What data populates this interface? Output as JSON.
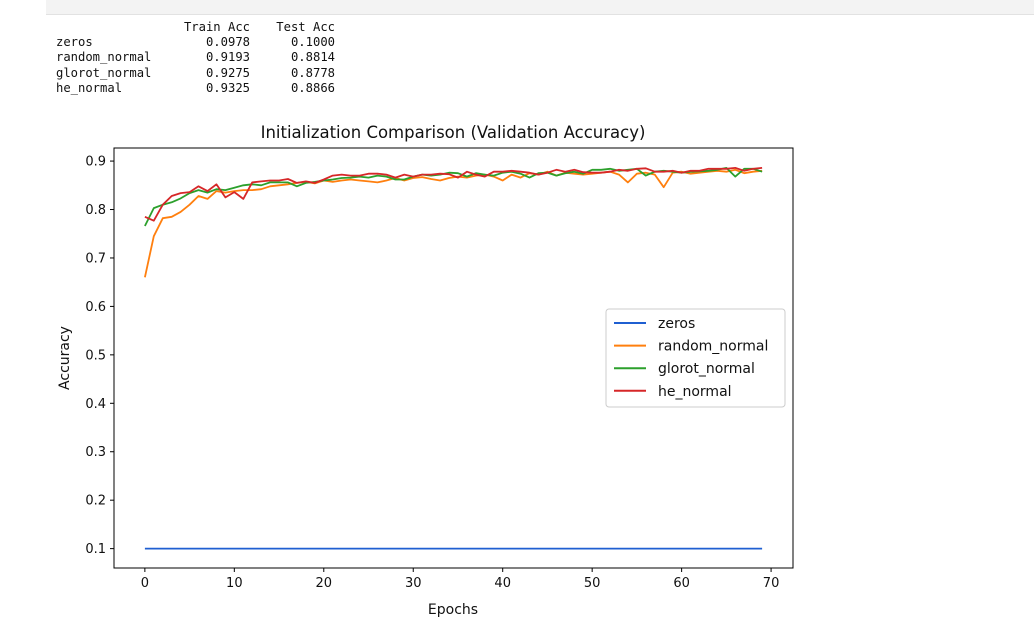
{
  "output_table": {
    "headers": [
      "",
      "Train Acc",
      "Test Acc"
    ],
    "rows": [
      {
        "name": "zeros",
        "train": "0.0978",
        "test": "0.1000"
      },
      {
        "name": "random_normal",
        "train": "0.9193",
        "test": "0.8814"
      },
      {
        "name": "glorot_normal",
        "train": "0.9275",
        "test": "0.8778"
      },
      {
        "name": "he_normal",
        "train": "0.9325",
        "test": "0.8866"
      }
    ]
  },
  "chart_data": {
    "type": "line",
    "title": "Initialization Comparison (Validation Accuracy)",
    "xlabel": "Epochs",
    "ylabel": "Accuracy",
    "xlim": [
      -3.45,
      72.45
    ],
    "ylim": [
      0.06,
      0.927
    ],
    "xticks": [
      0,
      10,
      20,
      30,
      40,
      50,
      60,
      70
    ],
    "yticks": [
      0.1,
      0.2,
      0.3,
      0.4,
      0.5,
      0.6,
      0.7,
      0.8,
      0.9
    ],
    "grid": false,
    "legend_position": "center-right",
    "x": [
      0,
      1,
      2,
      3,
      4,
      5,
      6,
      7,
      8,
      9,
      10,
      11,
      12,
      13,
      14,
      15,
      16,
      17,
      18,
      19,
      20,
      21,
      22,
      23,
      24,
      25,
      26,
      27,
      28,
      29,
      30,
      31,
      32,
      33,
      34,
      35,
      36,
      37,
      38,
      39,
      40,
      41,
      42,
      43,
      44,
      45,
      46,
      47,
      48,
      49,
      50,
      51,
      52,
      53,
      54,
      55,
      56,
      57,
      58,
      59,
      60,
      61,
      62,
      63,
      64,
      65,
      66,
      67,
      68,
      69
    ],
    "series": [
      {
        "name": "zeros",
        "color": "#1f5fd1",
        "values": [
          0.1,
          0.1,
          0.1,
          0.1,
          0.1,
          0.1,
          0.1,
          0.1,
          0.1,
          0.1,
          0.1,
          0.1,
          0.1,
          0.1,
          0.1,
          0.1,
          0.1,
          0.1,
          0.1,
          0.1,
          0.1,
          0.1,
          0.1,
          0.1,
          0.1,
          0.1,
          0.1,
          0.1,
          0.1,
          0.1,
          0.1,
          0.1,
          0.1,
          0.1,
          0.1,
          0.1,
          0.1,
          0.1,
          0.1,
          0.1,
          0.1,
          0.1,
          0.1,
          0.1,
          0.1,
          0.1,
          0.1,
          0.1,
          0.1,
          0.1,
          0.1,
          0.1,
          0.1,
          0.1,
          0.1,
          0.1,
          0.1,
          0.1,
          0.1,
          0.1,
          0.1,
          0.1,
          0.1,
          0.1,
          0.1,
          0.1,
          0.1,
          0.1,
          0.1,
          0.1
        ]
      },
      {
        "name": "random_normal",
        "color": "#ff7f0e",
        "values": [
          0.66,
          0.745,
          0.782,
          0.785,
          0.795,
          0.81,
          0.828,
          0.822,
          0.838,
          0.835,
          0.838,
          0.84,
          0.84,
          0.842,
          0.848,
          0.85,
          0.852,
          0.855,
          0.857,
          0.854,
          0.86,
          0.857,
          0.86,
          0.862,
          0.86,
          0.858,
          0.856,
          0.86,
          0.865,
          0.86,
          0.865,
          0.867,
          0.863,
          0.86,
          0.865,
          0.868,
          0.866,
          0.87,
          0.872,
          0.868,
          0.86,
          0.872,
          0.866,
          0.875,
          0.872,
          0.878,
          0.87,
          0.876,
          0.874,
          0.872,
          0.874,
          0.876,
          0.878,
          0.872,
          0.856,
          0.874,
          0.876,
          0.872,
          0.846,
          0.876,
          0.878,
          0.874,
          0.876,
          0.878,
          0.88,
          0.878,
          0.882,
          0.875,
          0.878,
          0.88
        ]
      },
      {
        "name": "glorot_normal",
        "color": "#2ca02c",
        "values": [
          0.766,
          0.803,
          0.81,
          0.815,
          0.823,
          0.834,
          0.84,
          0.835,
          0.842,
          0.84,
          0.845,
          0.85,
          0.852,
          0.85,
          0.856,
          0.856,
          0.856,
          0.848,
          0.855,
          0.857,
          0.86,
          0.862,
          0.865,
          0.866,
          0.868,
          0.866,
          0.87,
          0.868,
          0.862,
          0.862,
          0.868,
          0.872,
          0.87,
          0.872,
          0.876,
          0.875,
          0.868,
          0.875,
          0.872,
          0.87,
          0.876,
          0.878,
          0.874,
          0.866,
          0.875,
          0.876,
          0.87,
          0.875,
          0.878,
          0.874,
          0.882,
          0.882,
          0.884,
          0.88,
          0.882,
          0.884,
          0.87,
          0.878,
          0.88,
          0.878,
          0.876,
          0.878,
          0.879,
          0.88,
          0.882,
          0.886,
          0.868,
          0.884,
          0.884,
          0.878
        ]
      },
      {
        "name": "he_normal",
        "color": "#d62728",
        "values": [
          0.785,
          0.777,
          0.81,
          0.828,
          0.834,
          0.836,
          0.848,
          0.838,
          0.852,
          0.825,
          0.836,
          0.822,
          0.856,
          0.858,
          0.86,
          0.86,
          0.863,
          0.855,
          0.858,
          0.855,
          0.862,
          0.87,
          0.872,
          0.87,
          0.87,
          0.874,
          0.874,
          0.872,
          0.866,
          0.872,
          0.868,
          0.872,
          0.872,
          0.874,
          0.873,
          0.866,
          0.878,
          0.872,
          0.868,
          0.878,
          0.878,
          0.88,
          0.878,
          0.876,
          0.872,
          0.876,
          0.882,
          0.878,
          0.882,
          0.877,
          0.876,
          0.876,
          0.878,
          0.882,
          0.88,
          0.884,
          0.885,
          0.878,
          0.878,
          0.88,
          0.876,
          0.88,
          0.88,
          0.884,
          0.884,
          0.884,
          0.886,
          0.88,
          0.884,
          0.886
        ]
      }
    ]
  }
}
